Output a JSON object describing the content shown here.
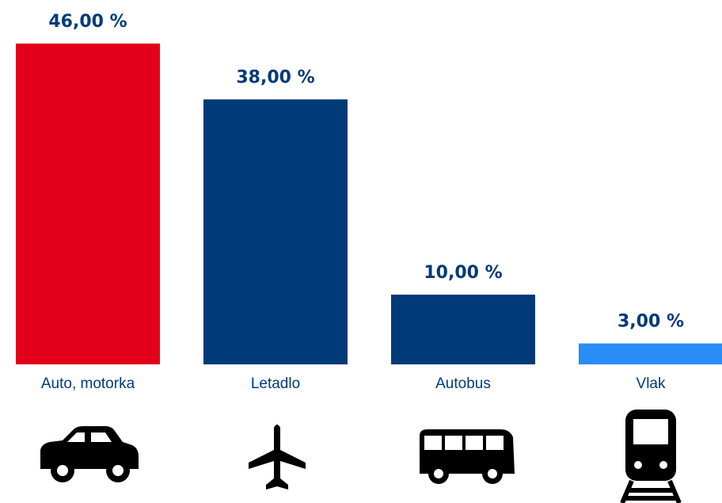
{
  "chart_data": {
    "type": "bar",
    "categories": [
      "Auto, motorka",
      "Letadlo",
      "Autobus",
      "Vlak"
    ],
    "values": [
      46,
      38,
      10,
      3
    ],
    "value_labels": [
      "46,00 %",
      "38,00 %",
      "10,00 %",
      "3,00 %"
    ],
    "colors": [
      "#e2001a",
      "#003a78",
      "#003a78",
      "#2a8cf5"
    ]
  }
}
